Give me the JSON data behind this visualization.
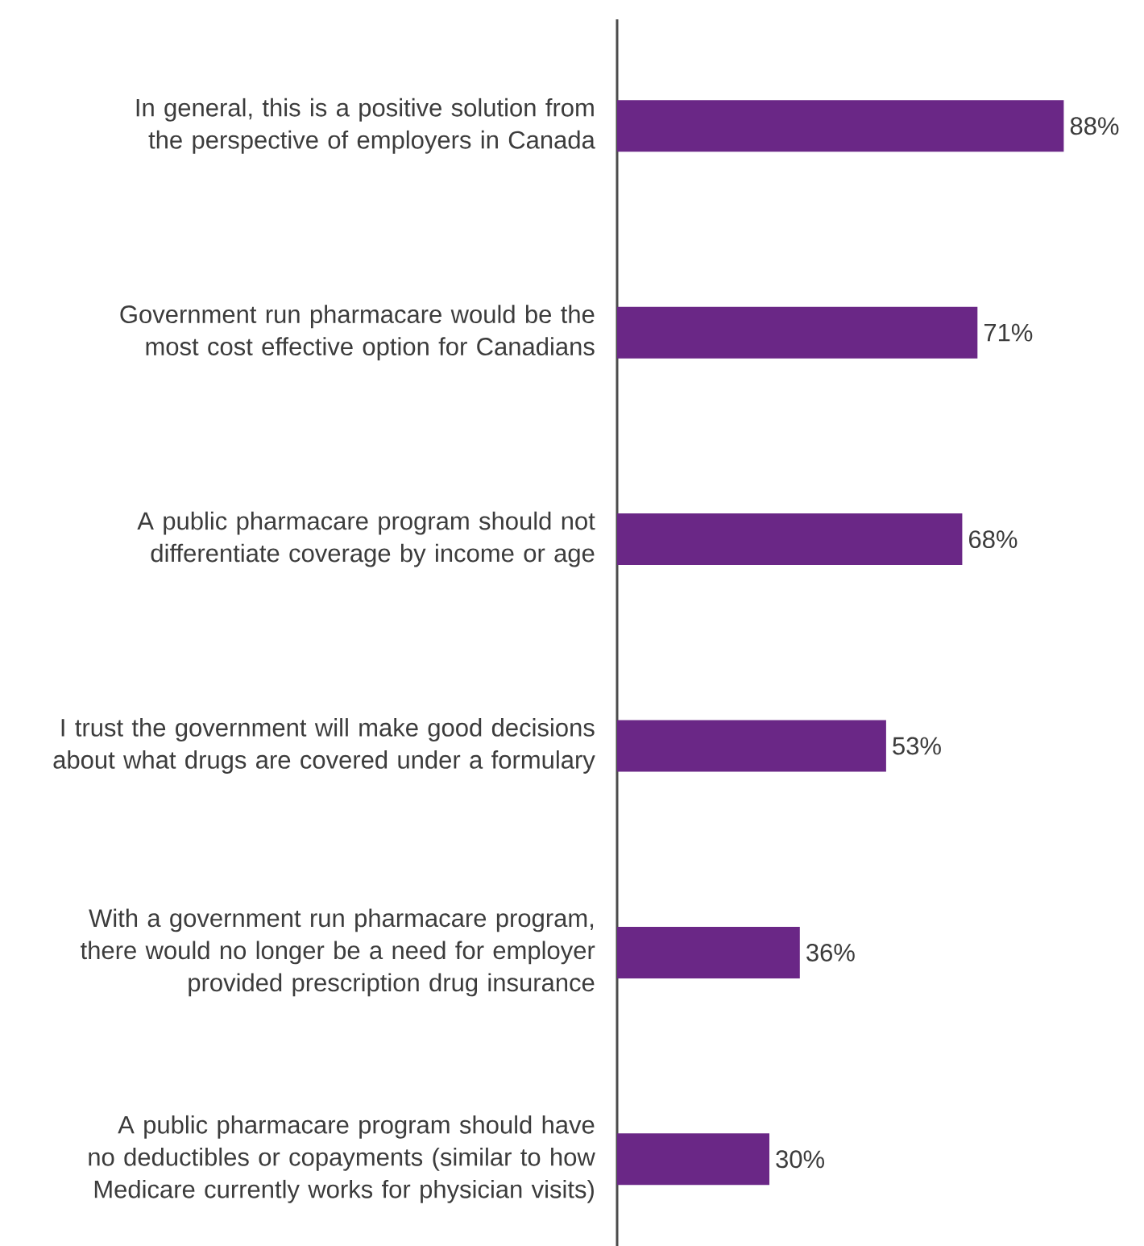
{
  "chart_data": {
    "type": "bar",
    "orientation": "horizontal",
    "color": "#6a2786",
    "categories": [
      "In general, this is a positive solution from the perspective of employers in Canada",
      "Government run pharmacare would be the most cost effective option for Canadians",
      "A public pharmacare program should not differentiate coverage by income or age",
      "I trust the government will make good decisions about what drugs are covered under a formulary",
      "With a government run pharmacare program, there would no longer be a need for employer provided prescription drug insurance",
      "A public pharmacare program should have no deductibles or copayments (similar to how Medicare currently works for physician visits)"
    ],
    "values": [
      88,
      71,
      68,
      53,
      36,
      30
    ],
    "value_labels": [
      "88%",
      "71%",
      "68%",
      "53%",
      "36%",
      "30%"
    ]
  }
}
